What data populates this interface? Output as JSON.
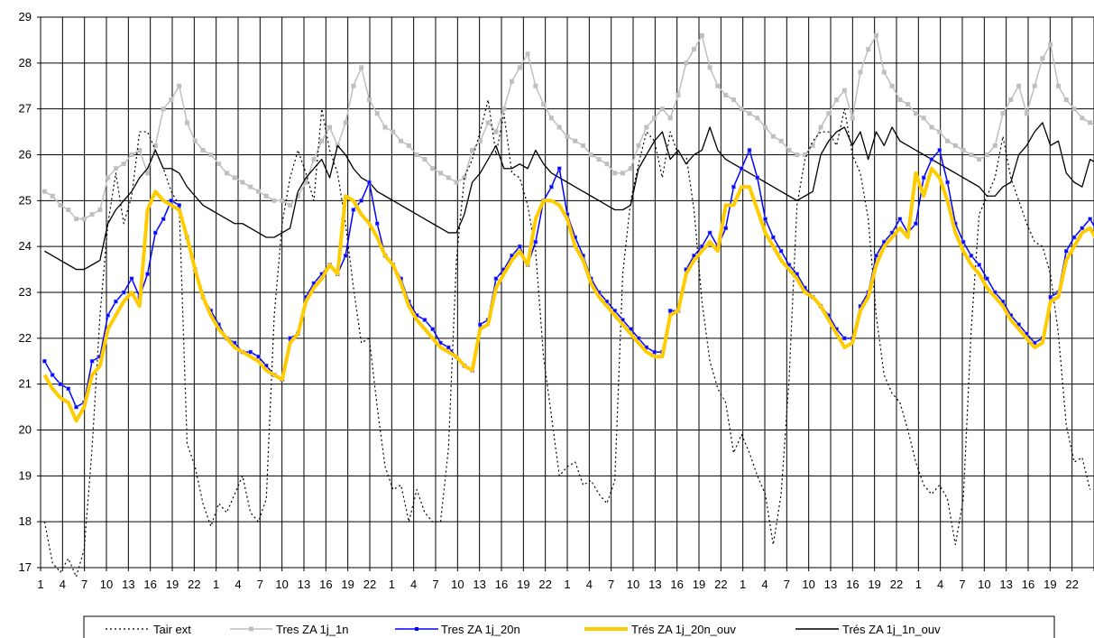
{
  "chart_data": {
    "type": "line",
    "ylim": [
      17,
      29
    ],
    "y_ticks": [
      "17",
      "18",
      "19",
      "20",
      "21",
      "22",
      "23",
      "24",
      "25",
      "26",
      "27",
      "28",
      "29"
    ],
    "x_tick_labels": [
      "1",
      "4",
      "7",
      "10",
      "13",
      "16",
      "19",
      "22",
      "1",
      "4",
      "7",
      "10",
      "13",
      "16",
      "19",
      "22",
      "1",
      "4",
      "7",
      "10",
      "13",
      "16",
      "19",
      "22",
      "1",
      "4",
      "7",
      "10",
      "13",
      "16",
      "19",
      "22",
      "1",
      "4",
      "7",
      "10",
      "13",
      "16",
      "19",
      "22",
      "1",
      "4",
      "7",
      "10",
      "13",
      "16",
      "19",
      "22"
    ],
    "grid": true,
    "legend_position": "bottom",
    "series": [
      {
        "name": "Tair ext",
        "color": "#000000",
        "style": "dotted",
        "values": [
          18.0,
          17.1,
          16.9,
          17.2,
          16.8,
          17.4,
          19.6,
          22.5,
          24.5,
          25.6,
          24.5,
          25.1,
          26.5,
          26.5,
          26.1,
          25.7,
          25.2,
          24.9,
          19.7,
          19.2,
          18.4,
          17.9,
          18.4,
          18.2,
          18.6,
          19.0,
          18.2,
          18.0,
          18.5,
          22.5,
          24.5,
          25.5,
          26.1,
          25.6,
          25.0,
          27.0,
          26.1,
          25.6,
          24.5,
          23.1,
          21.9,
          22.0,
          20.5,
          19.2,
          18.7,
          18.8,
          18.0,
          18.7,
          18.2,
          18.0,
          18.0,
          19.6,
          23.7,
          25.5,
          25.9,
          26.5,
          27.2,
          26.0,
          26.9,
          25.6,
          25.5,
          24.9,
          23.9,
          21.6,
          20.3,
          19.0,
          19.2,
          19.3,
          18.8,
          18.9,
          18.6,
          18.4,
          18.9,
          23.4,
          25.0,
          25.8,
          26.5,
          26.3,
          25.5,
          26.5,
          26.0,
          26.0,
          24.8,
          22.8,
          21.5,
          20.9,
          20.6,
          19.5,
          19.9,
          19.5,
          19.0,
          18.6,
          17.5,
          18.6,
          21.1,
          24.9,
          25.9,
          26.3,
          26.5,
          26.5,
          26.2,
          27.0,
          26.0,
          25.6,
          24.6,
          22.5,
          21.2,
          20.8,
          20.6,
          20.0,
          19.3,
          18.8,
          18.6,
          18.8,
          18.5,
          17.5,
          18.5,
          22.2,
          24.7,
          25.1,
          25.5,
          26.4,
          25.5,
          25.0,
          24.5,
          24.1,
          24.0,
          23.4,
          22.1,
          20.1,
          19.3,
          19.4,
          18.7
        ]
      },
      {
        "name": "Tres ZA 1j_1n",
        "color": "#bfbfbf",
        "style": "solid-square-markers",
        "values": [
          25.2,
          25.1,
          24.9,
          24.8,
          24.6,
          24.6,
          24.7,
          24.8,
          25.5,
          25.7,
          25.8,
          26.0,
          26.1,
          25.6,
          26.2,
          27.0,
          27.2,
          27.5,
          26.7,
          26.3,
          26.1,
          26.0,
          25.8,
          25.6,
          25.5,
          25.4,
          25.3,
          25.2,
          25.1,
          25.0,
          25.0,
          24.9,
          25.1,
          25.4,
          25.9,
          26.3,
          26.6,
          26.2,
          26.7,
          27.5,
          27.9,
          27.2,
          26.9,
          26.6,
          26.5,
          26.3,
          26.2,
          26.0,
          25.9,
          25.7,
          25.6,
          25.5,
          25.4,
          25.5,
          26.1,
          26.3,
          26.7,
          26.5,
          27.0,
          27.6,
          27.9,
          28.2,
          27.5,
          27.1,
          26.8,
          26.6,
          26.4,
          26.3,
          26.2,
          26.0,
          25.9,
          25.8,
          25.6,
          25.6,
          25.7,
          26.2,
          26.6,
          26.8,
          27.0,
          26.8,
          27.3,
          28.0,
          28.3,
          28.6,
          27.9,
          27.5,
          27.3,
          27.2,
          27.0,
          26.9,
          26.8,
          26.6,
          26.4,
          26.3,
          26.1,
          26.0,
          26.0,
          26.2,
          26.6,
          26.9,
          27.2,
          27.4,
          26.8,
          27.8,
          28.3,
          28.6,
          27.8,
          27.5,
          27.2,
          27.1,
          26.9,
          26.8,
          26.6,
          26.5,
          26.3,
          26.2,
          26.1,
          26.0,
          25.9,
          26.0,
          26.2,
          26.9,
          27.2,
          27.5,
          26.9,
          27.5,
          28.1,
          28.4,
          27.5,
          27.2,
          27.0,
          26.8,
          26.7,
          26.6
        ]
      },
      {
        "name": "Tres ZA 1j_20n",
        "color": "#0000ff",
        "style": "solid-star-markers",
        "values": [
          21.5,
          21.2,
          21.0,
          20.9,
          20.5,
          20.6,
          21.5,
          21.6,
          22.5,
          22.8,
          23.0,
          23.3,
          22.9,
          23.4,
          24.3,
          24.6,
          25.0,
          24.9,
          24.2,
          23.5,
          22.9,
          22.6,
          22.3,
          22.0,
          21.9,
          21.7,
          21.7,
          21.6,
          21.4,
          21.2,
          21.1,
          22.0,
          22.1,
          22.9,
          23.2,
          23.4,
          23.6,
          23.4,
          23.8,
          24.8,
          25.0,
          25.4,
          24.5,
          23.8,
          23.6,
          23.3,
          22.8,
          22.5,
          22.4,
          22.2,
          21.9,
          21.8,
          21.6,
          21.4,
          21.3,
          22.3,
          22.4,
          23.3,
          23.5,
          23.8,
          24.0,
          23.6,
          24.1,
          25.0,
          25.3,
          25.7,
          24.7,
          24.2,
          23.8,
          23.3,
          23.0,
          22.8,
          22.6,
          22.4,
          22.2,
          22.0,
          21.8,
          21.7,
          21.7,
          22.6,
          22.6,
          23.5,
          23.8,
          24.0,
          24.3,
          24.0,
          24.4,
          25.3,
          25.7,
          26.1,
          25.5,
          24.6,
          24.2,
          23.9,
          23.6,
          23.4,
          23.1,
          22.9,
          22.7,
          22.5,
          22.2,
          22.0,
          22.0,
          22.7,
          23.0,
          23.8,
          24.1,
          24.3,
          24.6,
          24.3,
          24.5,
          25.5,
          25.9,
          26.1,
          25.4,
          24.5,
          24.1,
          23.8,
          23.6,
          23.3,
          23.0,
          22.8,
          22.5,
          22.3,
          22.1,
          21.9,
          22.0,
          22.9,
          23.0,
          23.9,
          24.2,
          24.4,
          24.6,
          24.3,
          24.7,
          25.4,
          25.6,
          25.8,
          25.1,
          24.4,
          23.8,
          23.4,
          23.2,
          22.9
        ]
      },
      {
        "name": "Trés ZA 1j_20n_ouv",
        "color": "#ffcc00",
        "style": "thick-solid",
        "values": [
          21.2,
          20.9,
          20.7,
          20.6,
          20.2,
          20.5,
          21.2,
          21.4,
          22.2,
          22.5,
          22.8,
          23.0,
          22.7,
          24.8,
          25.2,
          25.0,
          24.9,
          24.8,
          24.2,
          23.5,
          22.9,
          22.5,
          22.2,
          22.0,
          21.8,
          21.7,
          21.6,
          21.5,
          21.3,
          21.2,
          21.1,
          21.9,
          22.1,
          22.8,
          23.1,
          23.3,
          23.6,
          23.4,
          25.1,
          25.0,
          24.7,
          24.5,
          24.2,
          23.8,
          23.6,
          23.2,
          22.7,
          22.4,
          22.2,
          22.0,
          21.8,
          21.7,
          21.6,
          21.4,
          21.3,
          22.2,
          22.3,
          23.1,
          23.4,
          23.7,
          23.9,
          23.6,
          24.6,
          25.0,
          25.0,
          24.9,
          24.6,
          24.0,
          23.7,
          23.2,
          22.9,
          22.7,
          22.5,
          22.3,
          22.1,
          21.9,
          21.7,
          21.6,
          21.6,
          22.5,
          22.6,
          23.4,
          23.7,
          23.9,
          24.1,
          23.9,
          24.9,
          24.9,
          25.3,
          25.3,
          24.8,
          24.3,
          24.0,
          23.7,
          23.5,
          23.3,
          23.0,
          22.9,
          22.7,
          22.4,
          22.1,
          21.8,
          21.9,
          22.6,
          22.9,
          23.6,
          24.0,
          24.2,
          24.4,
          24.2,
          25.6,
          25.1,
          25.7,
          25.5,
          25.0,
          24.3,
          23.9,
          23.6,
          23.4,
          23.1,
          22.9,
          22.7,
          22.4,
          22.2,
          22.0,
          21.8,
          21.9,
          22.8,
          22.9,
          23.7,
          24.0,
          24.3,
          24.4,
          24.1,
          25.1,
          24.6,
          24.5,
          24.5,
          24.4,
          23.7,
          23.0,
          22.8,
          22.5
        ]
      },
      {
        "name": "Trés ZA 1j_1n_ouv",
        "color": "#000000",
        "style": "solid",
        "values": [
          23.9,
          23.8,
          23.7,
          23.6,
          23.5,
          23.5,
          23.6,
          23.7,
          24.5,
          24.8,
          25.0,
          25.2,
          25.5,
          25.7,
          26.1,
          25.7,
          25.7,
          25.6,
          25.3,
          25.1,
          24.9,
          24.8,
          24.7,
          24.6,
          24.5,
          24.5,
          24.4,
          24.3,
          24.2,
          24.2,
          24.3,
          24.4,
          25.2,
          25.5,
          25.7,
          25.9,
          25.5,
          26.2,
          26.0,
          25.7,
          25.5,
          25.4,
          25.2,
          25.1,
          25.0,
          24.9,
          24.8,
          24.7,
          24.6,
          24.5,
          24.4,
          24.3,
          24.3,
          24.7,
          25.4,
          25.6,
          25.9,
          26.2,
          25.7,
          25.7,
          25.8,
          25.7,
          26.1,
          25.8,
          25.6,
          25.5,
          25.4,
          25.3,
          25.2,
          25.1,
          25.0,
          24.9,
          24.8,
          24.8,
          24.9,
          25.7,
          26.0,
          26.3,
          26.5,
          25.9,
          26.1,
          25.8,
          26.0,
          26.1,
          26.6,
          26.1,
          25.9,
          25.8,
          25.7,
          25.6,
          25.5,
          25.4,
          25.3,
          25.2,
          25.1,
          25.0,
          25.1,
          25.2,
          26.0,
          26.3,
          26.5,
          26.6,
          26.2,
          26.5,
          25.9,
          26.5,
          26.2,
          26.6,
          26.3,
          26.2,
          26.1,
          26.0,
          25.9,
          25.8,
          25.7,
          25.6,
          25.5,
          25.4,
          25.3,
          25.1,
          25.1,
          25.3,
          25.4,
          26.0,
          26.2,
          26.5,
          26.7,
          26.2,
          26.3,
          25.6,
          25.4,
          25.3,
          25.9,
          25.8,
          25.7,
          25.6,
          25.5,
          25.4,
          25.3
        ]
      }
    ]
  }
}
